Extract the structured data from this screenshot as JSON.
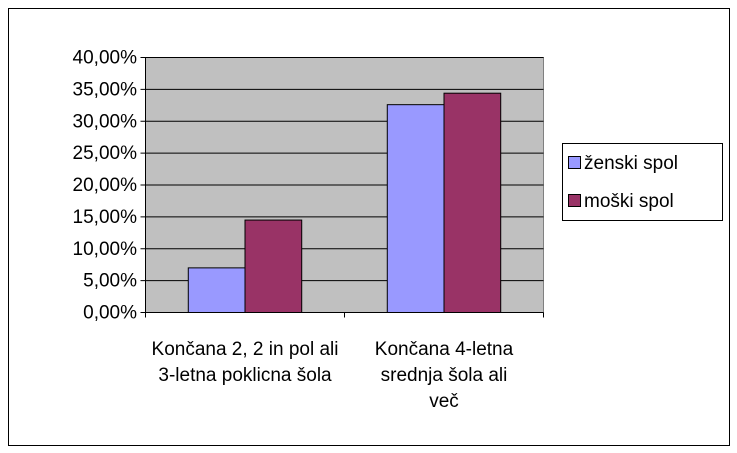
{
  "chart_data": {
    "type": "bar",
    "categories": [
      "Končana 2, 2 in pol ali 3-letna poklicna šola",
      "Končana 4-letna srednja šola ali več"
    ],
    "series": [
      {
        "name": "ženski spol",
        "color": "#9999ff",
        "values": [
          7.0,
          32.6
        ]
      },
      {
        "name": "moški spol",
        "color": "#993366",
        "values": [
          14.5,
          34.4
        ]
      }
    ],
    "ylim": [
      0,
      40
    ],
    "yticks": [
      {
        "value": 0,
        "label": "0,00%"
      },
      {
        "value": 5,
        "label": "5,00%"
      },
      {
        "value": 10,
        "label": "10,00%"
      },
      {
        "value": 15,
        "label": "15,00%"
      },
      {
        "value": 20,
        "label": "20,00%"
      },
      {
        "value": 25,
        "label": "25,00%"
      },
      {
        "value": 30,
        "label": "30,00%"
      },
      {
        "value": 35,
        "label": "35,00%"
      },
      {
        "value": 40,
        "label": "40,00%"
      }
    ],
    "grid": true,
    "legend": "right"
  }
}
